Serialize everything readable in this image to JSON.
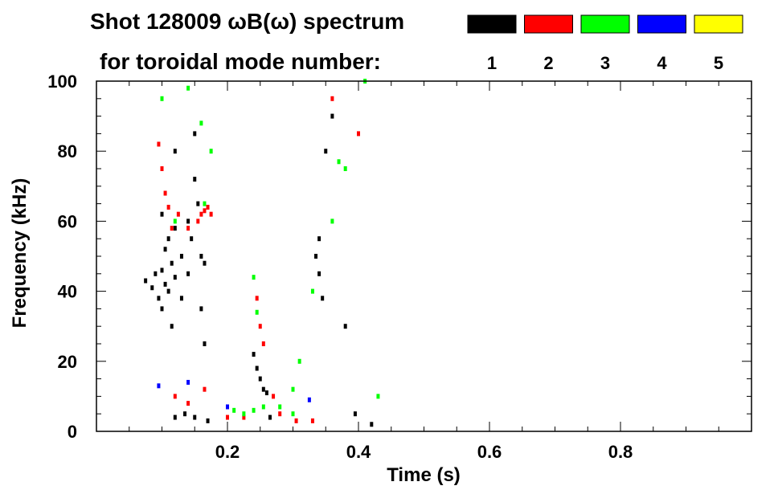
{
  "chart_data": {
    "type": "scatter",
    "title_line1": "Shot 128009 ωB(ω) spectrum",
    "title_line2": "for toroidal mode number:",
    "xlabel": "Time (s)",
    "ylabel": "Frequency (kHz)",
    "xlim": [
      0.0,
      1.0
    ],
    "ylim": [
      0,
      100
    ],
    "x_ticks": [
      0.2,
      0.4,
      0.6,
      0.8
    ],
    "x_tick_labels": [
      "0.2",
      "0.4",
      "0.6",
      "0.8"
    ],
    "y_ticks": [
      0,
      20,
      40,
      60,
      80,
      100
    ],
    "y_tick_labels": [
      "0",
      "20",
      "40",
      "60",
      "80",
      "100"
    ],
    "grid": false,
    "legend_position": "top",
    "legend": [
      {
        "label": "1",
        "color": "#000000"
      },
      {
        "label": "2",
        "color": "#ff0000"
      },
      {
        "label": "3",
        "color": "#00ff00"
      },
      {
        "label": "4",
        "color": "#0000ff"
      },
      {
        "label": "5",
        "color": "#ffff00"
      }
    ],
    "series": [
      {
        "name": "1",
        "color": "#000000",
        "points": [
          [
            0.075,
            43
          ],
          [
            0.085,
            41
          ],
          [
            0.09,
            45
          ],
          [
            0.095,
            38
          ],
          [
            0.1,
            46
          ],
          [
            0.1,
            35
          ],
          [
            0.1,
            62
          ],
          [
            0.105,
            42
          ],
          [
            0.105,
            52
          ],
          [
            0.11,
            40
          ],
          [
            0.11,
            55
          ],
          [
            0.115,
            48
          ],
          [
            0.115,
            30
          ],
          [
            0.12,
            44
          ],
          [
            0.12,
            58
          ],
          [
            0.12,
            80
          ],
          [
            0.13,
            50
          ],
          [
            0.13,
            38
          ],
          [
            0.14,
            45
          ],
          [
            0.14,
            60
          ],
          [
            0.145,
            55
          ],
          [
            0.15,
            72
          ],
          [
            0.15,
            85
          ],
          [
            0.155,
            65
          ],
          [
            0.16,
            50
          ],
          [
            0.16,
            35
          ],
          [
            0.165,
            48
          ],
          [
            0.165,
            25
          ],
          [
            0.12,
            4
          ],
          [
            0.135,
            5
          ],
          [
            0.15,
            4
          ],
          [
            0.17,
            3
          ],
          [
            0.24,
            22
          ],
          [
            0.245,
            18
          ],
          [
            0.25,
            15
          ],
          [
            0.255,
            12
          ],
          [
            0.26,
            11
          ],
          [
            0.265,
            4
          ],
          [
            0.335,
            50
          ],
          [
            0.34,
            55
          ],
          [
            0.34,
            45
          ],
          [
            0.345,
            38
          ],
          [
            0.35,
            80
          ],
          [
            0.36,
            90
          ],
          [
            0.38,
            30
          ],
          [
            0.395,
            5
          ],
          [
            0.42,
            2
          ]
        ]
      },
      {
        "name": "2",
        "color": "#ff0000",
        "points": [
          [
            0.095,
            82
          ],
          [
            0.1,
            75
          ],
          [
            0.105,
            68
          ],
          [
            0.11,
            64
          ],
          [
            0.115,
            58
          ],
          [
            0.125,
            62
          ],
          [
            0.155,
            60
          ],
          [
            0.16,
            62
          ],
          [
            0.165,
            63
          ],
          [
            0.17,
            64
          ],
          [
            0.175,
            62
          ],
          [
            0.14,
            58
          ],
          [
            0.12,
            10
          ],
          [
            0.14,
            8
          ],
          [
            0.165,
            12
          ],
          [
            0.2,
            4
          ],
          [
            0.225,
            4
          ],
          [
            0.245,
            38
          ],
          [
            0.25,
            30
          ],
          [
            0.255,
            25
          ],
          [
            0.27,
            10
          ],
          [
            0.28,
            5
          ],
          [
            0.305,
            3
          ],
          [
            0.33,
            3
          ],
          [
            0.36,
            95
          ],
          [
            0.4,
            85
          ]
        ]
      },
      {
        "name": "3",
        "color": "#00ff00",
        "points": [
          [
            0.1,
            95
          ],
          [
            0.14,
            98
          ],
          [
            0.16,
            88
          ],
          [
            0.175,
            80
          ],
          [
            0.165,
            65
          ],
          [
            0.12,
            60
          ],
          [
            0.24,
            44
          ],
          [
            0.245,
            34
          ],
          [
            0.21,
            6
          ],
          [
            0.225,
            5
          ],
          [
            0.24,
            6
          ],
          [
            0.255,
            7
          ],
          [
            0.28,
            7
          ],
          [
            0.3,
            5
          ],
          [
            0.3,
            12
          ],
          [
            0.31,
            20
          ],
          [
            0.33,
            40
          ],
          [
            0.36,
            60
          ],
          [
            0.37,
            77
          ],
          [
            0.38,
            75
          ],
          [
            0.41,
            100
          ],
          [
            0.43,
            10
          ]
        ]
      },
      {
        "name": "4",
        "color": "#0000ff",
        "points": [
          [
            0.095,
            13
          ],
          [
            0.14,
            14
          ],
          [
            0.2,
            7
          ],
          [
            0.325,
            9
          ]
        ]
      },
      {
        "name": "5",
        "color": "#ffff00",
        "points": []
      }
    ]
  }
}
